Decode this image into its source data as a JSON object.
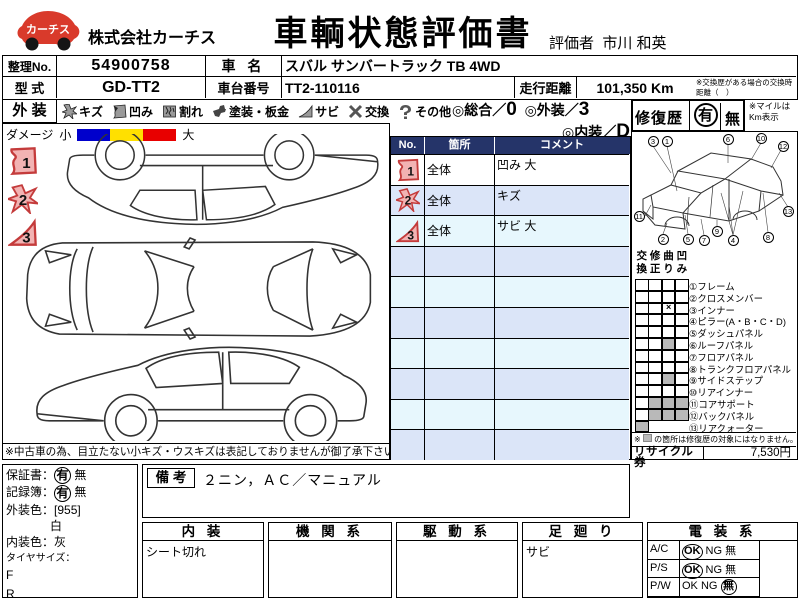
{
  "colors": {
    "table_header": "#253469",
    "row_alt_blue": "#dbe5f8",
    "row_alt_cyan": "#e7f7fd",
    "marker_stroke": "#c43b3b",
    "marker_fill": "#f2b3b3",
    "logo_red": "#d93a2b",
    "damage_bar": [
      "#0000cc",
      "#ffe000",
      "#e80000"
    ],
    "repair_gray": "#b9b9b9"
  },
  "header": {
    "logo_text": "カーチス",
    "company": "株式会社カーチス",
    "title": "車輌状態評価書",
    "evaluator_label": "評価者",
    "evaluator_name": "市川 和英"
  },
  "info": {
    "seiri_label": "整理No.",
    "seiri_value": "54900758",
    "car_name_label": "車 名",
    "car_name_value": "スバル サンバートラック TB 4WD",
    "model_label": "型 式",
    "model_value": "GD-TT2",
    "chassis_label": "車台番号",
    "chassis_value": "TT2-110116",
    "mileage_label": "走行距離",
    "mileage_value": "101,350 Km",
    "mileage_note": "※交換歴がある場合の交換時距離（　）"
  },
  "exterior_legend": {
    "section_label": "外 装",
    "items": [
      {
        "icon": "scratch-icon",
        "label": "キズ"
      },
      {
        "icon": "dent-icon",
        "label": "凹み"
      },
      {
        "icon": "crack-icon",
        "label": "割れ"
      },
      {
        "icon": "paint-icon",
        "label": "塗装・板金"
      },
      {
        "icon": "rust-icon",
        "label": "サビ"
      },
      {
        "icon": "replace-icon",
        "label": "交換"
      },
      {
        "icon": "other-icon",
        "label": "その他"
      }
    ],
    "damage_label": "ダメージ",
    "damage_small": "小",
    "damage_large": "大"
  },
  "ratings": {
    "overall_label": "◎総合／",
    "overall_value": "0",
    "exterior_label": "◎外装／",
    "exterior_value": "3",
    "interior_label": "◎内装／",
    "interior_value": "D"
  },
  "repair_history": {
    "label": "修復歴",
    "yes": "有",
    "no": "無",
    "mile_note": "※マイルは Km表示"
  },
  "damage_table": {
    "headers": [
      "No.",
      "箇所",
      "コメント"
    ],
    "rows": [
      {
        "no": "1",
        "icon": "dent-icon",
        "location": "全体",
        "comment": "凹み 大"
      },
      {
        "no": "2",
        "icon": "scratch-icon",
        "location": "全体",
        "comment": "キズ"
      },
      {
        "no": "3",
        "icon": "rust-icon",
        "location": "全体",
        "comment": "サビ 大"
      }
    ],
    "empty_row_count": 7
  },
  "diagram_disclaimer": "※中古車の為、目立たない小キズ・ウスキズは表記しておりませんが御了承下さい。",
  "repair_panel": {
    "col_headers": [
      "交換",
      "修正",
      "曲り",
      "凹み"
    ],
    "parts": [
      {
        "name": "①フレーム",
        "marks": [
          "",
          "",
          "",
          ""
        ]
      },
      {
        "name": "②クロスメンバー",
        "marks": [
          "",
          "",
          "",
          ""
        ]
      },
      {
        "name": "③インナー",
        "marks": [
          "",
          "",
          "x",
          ""
        ]
      },
      {
        "name": "④ピラー(A・B・C・D)",
        "marks": [
          "",
          "",
          "",
          ""
        ]
      },
      {
        "name": "⑤ダッシュパネル",
        "marks": [
          "",
          "",
          "",
          ""
        ]
      },
      {
        "name": "⑥ルーフパネル",
        "marks": [
          "",
          "",
          "gray",
          ""
        ]
      },
      {
        "name": "⑦フロアパネル",
        "marks": [
          "",
          "",
          "",
          ""
        ]
      },
      {
        "name": "⑧トランクフロアパネル",
        "marks": [
          "",
          "",
          "",
          ""
        ]
      },
      {
        "name": "⑨サイドステップ",
        "marks": [
          "",
          "",
          "gray",
          ""
        ]
      },
      {
        "name": "⑩リアインナー",
        "marks": [
          "",
          "",
          "",
          ""
        ]
      },
      {
        "name": "⑪コアサポート",
        "marks": [
          "",
          "gray",
          "gray",
          "gray"
        ]
      },
      {
        "name": "⑫バックパネル",
        "marks": [
          "",
          "gray",
          "gray",
          "gray"
        ]
      },
      {
        "name": "⑬リアクォーター",
        "marks": [
          "gray",
          null,
          null,
          null
        ]
      }
    ],
    "note_prefix": "※",
    "note_text": "の箇所は修復歴の対象にはなりません。",
    "recycle_label": "リサイクル券",
    "recycle_value": "7,530円"
  },
  "bottom_left": {
    "warranty_label": "保証書：",
    "warranty_yes": "有",
    "warranty_no": "無",
    "record_label": "記録簿：",
    "record_yes": "有",
    "record_no": "無",
    "ext_color_label": "外装色：",
    "ext_color_code": "[955]",
    "ext_color_name": "白",
    "int_color_label": "内装色：",
    "int_color_name": "灰",
    "tire_label": "タイヤサイズ：",
    "front_label": "F",
    "rear_label": "R"
  },
  "remarks": {
    "label": "備 考",
    "text": "２ニン，ＡＣ／マニュアル"
  },
  "bottom_tables": {
    "interior": {
      "title": "内 装",
      "content": "シート切れ"
    },
    "engine": {
      "title": "機 関 系",
      "content": ""
    },
    "drive": {
      "title": "駆 動 系",
      "content": ""
    },
    "suspension": {
      "title": "足 廻 り",
      "content": "サビ"
    },
    "electrical": {
      "title": "電 装 系",
      "rows": [
        {
          "label": "A/C",
          "ok": "OK",
          "ng": "NG",
          "no": "無",
          "selected": "OK"
        },
        {
          "label": "P/S",
          "ok": "OK",
          "ng": "NG",
          "no": "無",
          "selected": "OK"
        },
        {
          "label": "P/W",
          "ok": "OK",
          "ng": "NG",
          "no": "無",
          "selected": "無"
        }
      ]
    }
  }
}
